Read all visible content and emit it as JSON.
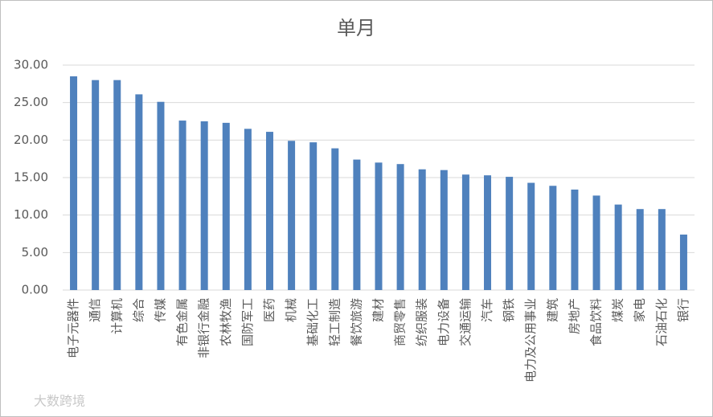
{
  "chart_data": {
    "type": "bar",
    "title": "单月",
    "categories": [
      "电子元器件",
      "通信",
      "计算机",
      "综合",
      "传媒",
      "有色金属",
      "非银行金融",
      "农林牧渔",
      "国防军工",
      "医药",
      "机械",
      "基础化工",
      "轻工制造",
      "餐饮旅游",
      "建材",
      "商贸零售",
      "纺织服装",
      "电力设备",
      "交通运输",
      "汽车",
      "钢铁",
      "电力及公用事业",
      "建筑",
      "房地产",
      "食品饮料",
      "煤炭",
      "家电",
      "石油石化",
      "银行"
    ],
    "values": [
      28.5,
      28.0,
      28.0,
      26.1,
      25.1,
      22.6,
      22.5,
      22.3,
      21.5,
      21.1,
      19.9,
      19.7,
      18.9,
      17.4,
      17.0,
      16.8,
      16.1,
      16.0,
      15.4,
      15.3,
      15.1,
      14.3,
      13.9,
      13.4,
      12.6,
      11.4,
      10.8,
      10.8,
      7.4
    ],
    "color": "#4f81bd",
    "ylim": [
      0,
      30
    ],
    "yticks": [
      {
        "value": 0,
        "label": "0.00"
      },
      {
        "value": 5,
        "label": "5.00"
      },
      {
        "value": 10,
        "label": "10.00"
      },
      {
        "value": 15,
        "label": "15.00"
      },
      {
        "value": 20,
        "label": "20.00"
      },
      {
        "value": 25,
        "label": "25.00"
      },
      {
        "value": 30,
        "label": "30.00"
      }
    ],
    "grid": true,
    "watermark": "大数跨境"
  }
}
